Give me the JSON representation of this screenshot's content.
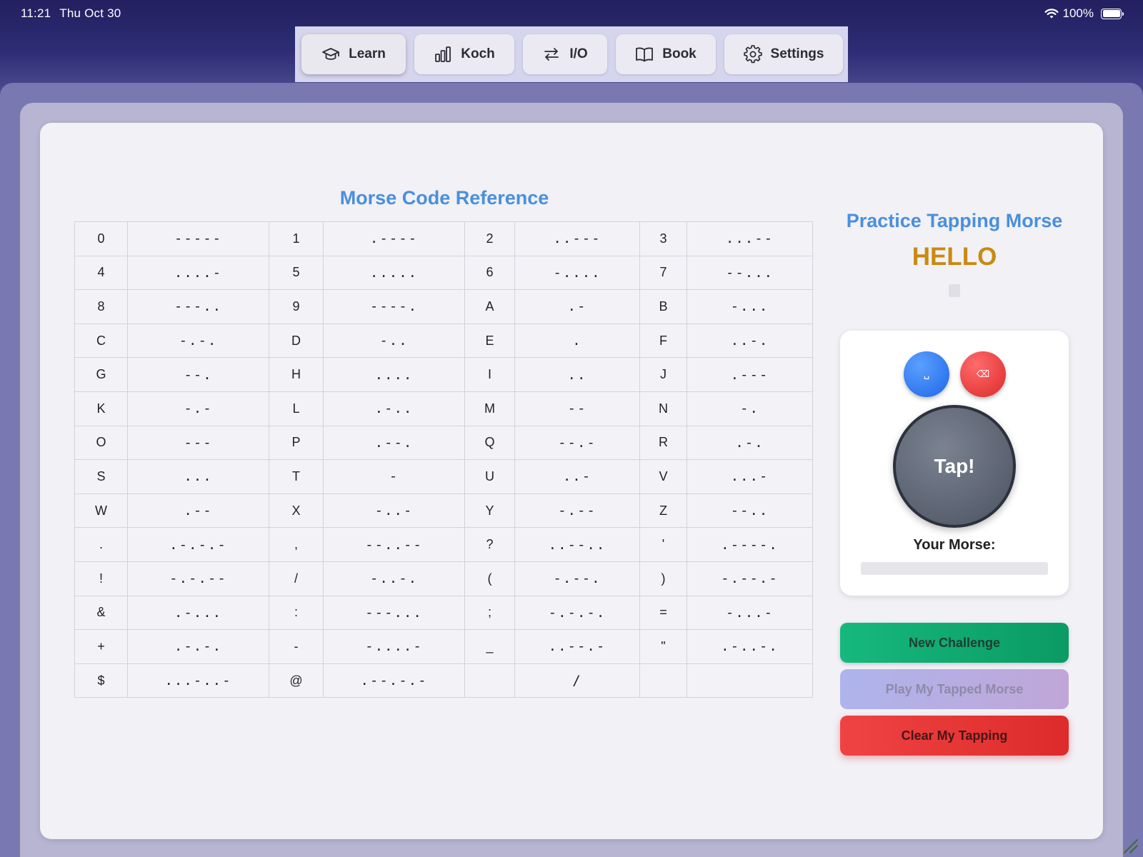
{
  "status_bar": {
    "time": "11:21",
    "date": "Thu Oct 30",
    "battery": "100%"
  },
  "tabs": [
    {
      "label": "Learn",
      "icon": "graduation-cap-icon",
      "active": true
    },
    {
      "label": "Koch",
      "icon": "bar-chart-icon"
    },
    {
      "label": "I/O",
      "icon": "swap-arrows-icon"
    },
    {
      "label": "Book",
      "icon": "book-icon"
    },
    {
      "label": "Settings",
      "icon": "gear-icon"
    }
  ],
  "reference": {
    "title": "Morse Code Reference",
    "rows": [
      [
        [
          "0",
          "-----"
        ],
        [
          "1",
          ".----"
        ],
        [
          "2",
          "..---"
        ],
        [
          "3",
          "...--"
        ]
      ],
      [
        [
          "4",
          "....-"
        ],
        [
          "5",
          "....."
        ],
        [
          "6",
          "-...."
        ],
        [
          "7",
          "--..."
        ]
      ],
      [
        [
          "8",
          "---.."
        ],
        [
          "9",
          "----."
        ],
        [
          "A",
          ".-"
        ],
        [
          "B",
          "-..."
        ]
      ],
      [
        [
          "C",
          "-.-."
        ],
        [
          "D",
          "-.."
        ],
        [
          "E",
          "."
        ],
        [
          "F",
          "..-."
        ]
      ],
      [
        [
          "G",
          "--."
        ],
        [
          "H",
          "...."
        ],
        [
          "I",
          ".."
        ],
        [
          "J",
          ".---"
        ]
      ],
      [
        [
          "K",
          "-.-"
        ],
        [
          "L",
          ".-.."
        ],
        [
          "M",
          "--"
        ],
        [
          "N",
          "-."
        ]
      ],
      [
        [
          "O",
          "---"
        ],
        [
          "P",
          ".--."
        ],
        [
          "Q",
          "--.-"
        ],
        [
          "R",
          ".-."
        ]
      ],
      [
        [
          "S",
          "..."
        ],
        [
          "T",
          "-"
        ],
        [
          "U",
          "..-"
        ],
        [
          "V",
          "...-"
        ]
      ],
      [
        [
          "W",
          ".--"
        ],
        [
          "X",
          "-..-"
        ],
        [
          "Y",
          "-.--"
        ],
        [
          "Z",
          "--.."
        ]
      ],
      [
        [
          ".",
          ".-.-.-"
        ],
        [
          ",",
          "--..--"
        ],
        [
          "?",
          "..--.."
        ],
        [
          "'",
          ".----."
        ]
      ],
      [
        [
          "!",
          "-.-.--"
        ],
        [
          "/",
          "-..-."
        ],
        [
          "(",
          "-.--."
        ],
        [
          ")",
          "-.--.-"
        ]
      ],
      [
        [
          "&",
          ".-..."
        ],
        [
          ":",
          "---..."
        ],
        [
          ";",
          "-.-.-."
        ],
        [
          "=",
          "-...-"
        ]
      ],
      [
        [
          "+",
          ".-.-."
        ],
        [
          "-",
          "-....-"
        ],
        [
          "_",
          "..--.-"
        ],
        [
          "\"",
          ".-..-."
        ]
      ],
      [
        [
          "$",
          "...-..-"
        ],
        [
          "@",
          ".--.-.-"
        ],
        [
          "",
          "/"
        ],
        [
          "",
          ""
        ]
      ]
    ]
  },
  "practice": {
    "title": "Practice Tapping Morse",
    "challenge_word": "HELLO",
    "space_glyph": "␣",
    "delete_glyph": "⌫",
    "tap_label": "Tap!",
    "your_morse_label": "Your Morse:",
    "your_morse_value": "",
    "buttons": {
      "new_challenge": "New Challenge",
      "play_tapped": "Play My Tapped Morse",
      "clear_tapping": "Clear My Tapping"
    }
  },
  "colors": {
    "accent_blue": "#4a8fdc",
    "challenge_gold": "#c98a12",
    "green": "#0fa86f",
    "red": "#e03535"
  }
}
